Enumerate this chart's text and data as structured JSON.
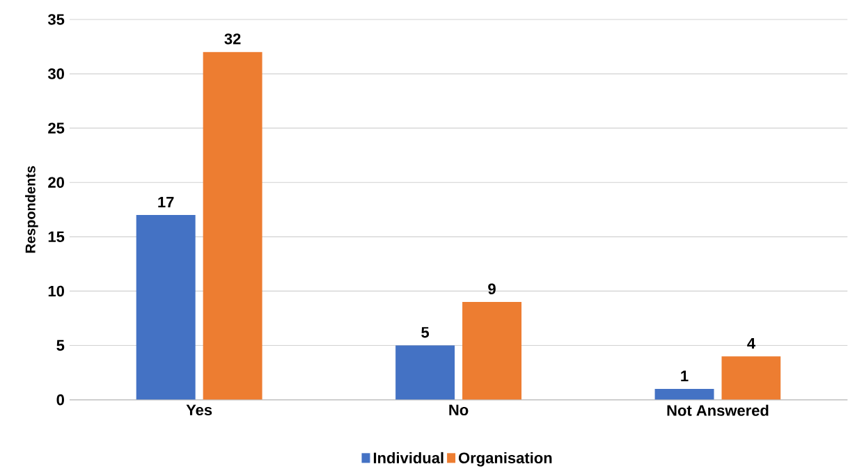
{
  "chart_data": {
    "type": "bar",
    "ylabel": "Respondents",
    "categories": [
      "Yes",
      "No",
      "Not Answered"
    ],
    "series": [
      {
        "name": "Individual",
        "color": "#4472c4",
        "values": [
          17,
          5,
          1
        ]
      },
      {
        "name": "Organisation",
        "color": "#ed7d31",
        "values": [
          32,
          9,
          4
        ]
      }
    ],
    "ylim": [
      0,
      35
    ],
    "yticks": [
      0,
      5,
      10,
      15,
      20,
      25,
      30,
      35
    ],
    "grid": "y",
    "legend": "bottom",
    "data_labels": true
  }
}
